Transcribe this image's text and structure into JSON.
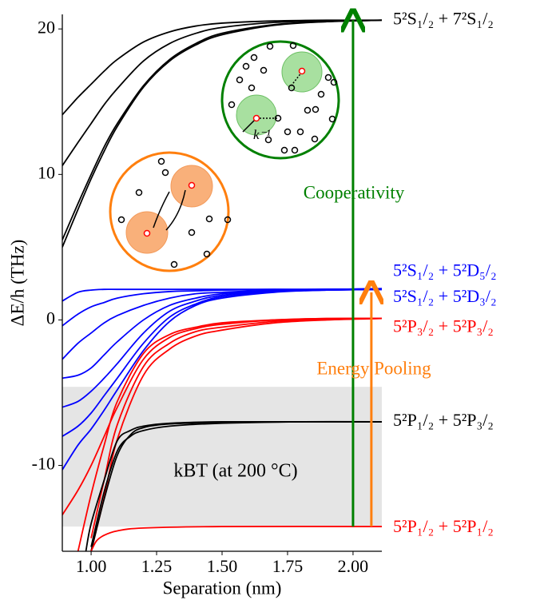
{
  "chart_data": {
    "type": "line",
    "x_label": "Separation (nm)",
    "y_label": "ΔE/h (THz)",
    "xlim": [
      0.89,
      2.11
    ],
    "ylim": [
      -15.9,
      21
    ],
    "xticks": [
      {
        "value": 1,
        "label": "1.00"
      },
      1.25,
      {
        "value": 1.5,
        "label": "1.50"
      },
      1.75,
      {
        "value": 2,
        "label": "2.00"
      }
    ],
    "yticks": [
      20,
      10,
      0,
      -10
    ],
    "band": {
      "range": [
        -14.2,
        -4.6
      ],
      "color": "#e5e5e5",
      "label": "kBT (at 200 °C)"
    },
    "inset_label": "k⁻¹",
    "arrows": [
      {
        "x": 2.0,
        "from": -14.2,
        "to": 20.6,
        "color": "green",
        "label": "Cooperativity"
      },
      {
        "x": 2.07,
        "from": -14.2,
        "to": 1.9,
        "color": "#ff7f0e",
        "label": "Energy Pooling"
      }
    ],
    "state_labels": [
      {
        "text": "5²S₁/₂ + 7²S₁/₂",
        "y": 20.6,
        "color": "black"
      },
      {
        "text": "5²S₁/₂ + 5²D₅/₂",
        "y": 2.15,
        "color": "blue"
      },
      {
        "text": "5²S₁/₂ + 5²D₃/₂",
        "y": 2.1,
        "color": "blue"
      },
      {
        "text": "5²P₃/₂ + 5²P₃/₂",
        "y": 0.1,
        "color": "red"
      },
      {
        "text": "5²P₁/₂ + 5²P₃/₂",
        "y": -7.0,
        "color": "black"
      },
      {
        "text": "5²P₁/₂ + 5²P₁/₂",
        "y": -14.2,
        "color": "red"
      }
    ],
    "series": [
      {
        "color": "black",
        "x": [
          0.89,
          0.95,
          1.0,
          1.05,
          1.1,
          1.2,
          1.3,
          1.4,
          1.5,
          1.7,
          1.9,
          2.11
        ],
        "values": [
          14.1,
          15.3,
          16.2,
          17.1,
          17.9,
          19.1,
          19.8,
          20.2,
          20.4,
          20.55,
          20.6,
          20.6
        ]
      },
      {
        "color": "black",
        "x": [
          0.89,
          0.95,
          1.0,
          1.05,
          1.1,
          1.2,
          1.3,
          1.4,
          1.5,
          1.7,
          1.9,
          2.11
        ],
        "values": [
          10.6,
          12.2,
          13.5,
          14.8,
          15.9,
          17.8,
          19.0,
          19.7,
          20.1,
          20.45,
          20.55,
          20.6
        ]
      },
      {
        "color": "black",
        "x": [
          0.89,
          0.95,
          1.0,
          1.05,
          1.1,
          1.2,
          1.3,
          1.4,
          1.5,
          1.7,
          1.9,
          2.11
        ],
        "values": [
          5.5,
          8.0,
          10.0,
          11.9,
          13.5,
          16.1,
          17.9,
          19.0,
          19.7,
          20.3,
          20.5,
          20.6
        ]
      },
      {
        "color": "black",
        "x": [
          0.89,
          0.95,
          1.0,
          1.05,
          1.1,
          1.2,
          1.3,
          1.4,
          1.5,
          1.7,
          1.9,
          2.11
        ],
        "values": [
          5.0,
          7.6,
          9.7,
          11.6,
          13.3,
          16.0,
          17.8,
          18.9,
          19.6,
          20.25,
          20.5,
          20.6
        ]
      },
      {
        "color": "blue",
        "x": [
          0.89,
          0.95,
          1.0,
          1.05,
          1.1,
          1.2,
          1.3,
          1.4,
          1.5,
          1.7,
          1.9,
          2.11
        ],
        "values": [
          1.3,
          1.9,
          2.05,
          2.1,
          2.1,
          2.1,
          2.1,
          2.1,
          2.1,
          2.1,
          2.1,
          2.15
        ]
      },
      {
        "color": "blue",
        "x": [
          0.89,
          0.95,
          1.0,
          1.05,
          1.1,
          1.2,
          1.3,
          1.4,
          1.5,
          1.7,
          1.9,
          2.11
        ],
        "values": [
          -0.4,
          0.4,
          0.9,
          1.2,
          1.5,
          1.8,
          1.95,
          2.0,
          2.05,
          2.1,
          2.1,
          2.15
        ]
      },
      {
        "color": "blue",
        "x": [
          0.89,
          0.95,
          1.0,
          1.05,
          1.1,
          1.2,
          1.3,
          1.4,
          1.5,
          1.7,
          1.9,
          2.11
        ],
        "values": [
          -2.7,
          -1.6,
          -0.9,
          -0.2,
          0.3,
          1.0,
          1.5,
          1.8,
          1.9,
          2.05,
          2.1,
          2.1
        ]
      },
      {
        "color": "blue",
        "x": [
          0.89,
          0.95,
          1.0,
          1.05,
          1.1,
          1.2,
          1.3,
          1.4,
          1.5,
          1.7,
          1.9,
          2.11
        ],
        "values": [
          -4.0,
          -3.8,
          -3.3,
          -2.4,
          -1.5,
          0.0,
          1.0,
          1.5,
          1.8,
          2.0,
          2.1,
          2.1
        ]
      },
      {
        "color": "blue",
        "x": [
          0.89,
          0.95,
          1.0,
          1.05,
          1.1,
          1.2,
          1.3,
          1.4,
          1.5,
          1.7,
          1.9,
          2.11
        ],
        "values": [
          -6.0,
          -5.6,
          -4.9,
          -4.0,
          -3.0,
          -0.9,
          0.6,
          1.3,
          1.7,
          2.0,
          2.05,
          2.1
        ]
      },
      {
        "color": "blue",
        "x": [
          0.89,
          0.95,
          1.0,
          1.05,
          1.1,
          1.2,
          1.3,
          1.4,
          1.5,
          1.7,
          1.9,
          2.11
        ],
        "values": [
          -8.0,
          -7.3,
          -6.4,
          -5.2,
          -4.0,
          -1.6,
          0.2,
          1.1,
          1.6,
          1.95,
          2.05,
          2.1
        ]
      },
      {
        "color": "blue",
        "x": [
          0.89,
          0.95,
          1.0,
          1.05,
          1.1,
          1.2,
          1.3,
          1.4,
          1.5,
          1.7,
          1.9,
          2.11
        ],
        "values": [
          -10.3,
          -8.6,
          -7.5,
          -6.2,
          -4.8,
          -2.1,
          -0.1,
          1.0,
          1.5,
          1.9,
          2.05,
          2.1
        ]
      },
      {
        "color": "red",
        "x": [
          0.89,
          0.95,
          1.0,
          1.05,
          1.1,
          1.2,
          1.3,
          1.4,
          1.5,
          1.7,
          1.9,
          2.11
        ],
        "values": [
          -13.4,
          -11.7,
          -10.0,
          -8.0,
          -6.0,
          -2.7,
          -1.2,
          -0.6,
          -0.3,
          0.0,
          0.1,
          0.1
        ]
      },
      {
        "color": "red",
        "x": [
          0.89,
          0.95,
          1.0,
          1.05,
          1.1,
          1.2,
          1.3,
          1.4,
          1.5,
          1.7,
          1.9,
          2.11
        ],
        "values": [
          null,
          -15.9,
          -12.0,
          -8.6,
          -5.6,
          -2.3,
          -1.0,
          -0.5,
          -0.2,
          0.0,
          0.1,
          0.1
        ]
      },
      {
        "color": "red",
        "x": [
          0.89,
          0.95,
          1.0,
          1.05,
          1.1,
          1.2,
          1.3,
          1.4,
          1.5,
          1.7,
          1.9,
          2.11
        ],
        "values": [
          null,
          null,
          -15.0,
          -11.0,
          -7.2,
          -3.2,
          -1.6,
          -0.8,
          -0.5,
          -0.1,
          0.05,
          0.1
        ]
      },
      {
        "color": "red",
        "x": [
          0.89,
          0.95,
          1.0,
          1.05,
          1.1,
          1.2,
          1.3,
          1.4,
          1.5,
          1.7,
          1.9,
          2.11
        ],
        "values": [
          null,
          null,
          -15.9,
          -12.2,
          -8.2,
          -3.8,
          -2.0,
          -1.1,
          -0.7,
          -0.2,
          0.0,
          0.1
        ]
      },
      {
        "color": "black",
        "x": [
          0.98,
          1.0,
          1.05,
          1.1,
          1.15,
          1.2,
          1.3,
          1.5,
          1.8,
          2.11
        ],
        "values": [
          -15.9,
          -14.0,
          -11.0,
          -8.3,
          -7.6,
          -7.3,
          -7.1,
          -7.0,
          -7.0,
          -7.0
        ]
      },
      {
        "color": "black",
        "x": [
          0.98,
          1.0,
          1.05,
          1.1,
          1.15,
          1.2,
          1.3,
          1.5,
          1.8,
          2.11
        ],
        "values": [
          null,
          -15.9,
          -12.3,
          -9.3,
          -7.9,
          -7.4,
          -7.15,
          -7.05,
          -7.0,
          -7.0
        ]
      },
      {
        "color": "black",
        "x": [
          0.98,
          1.0,
          1.05,
          1.1,
          1.15,
          1.2,
          1.3,
          1.5,
          1.8,
          2.11
        ],
        "values": [
          null,
          -15.6,
          -11.8,
          -9.0,
          -8.0,
          -7.6,
          -7.3,
          -7.1,
          -7.0,
          -7.0
        ]
      },
      {
        "color": "red",
        "x": [
          1.0,
          1.02,
          1.05,
          1.1,
          1.2,
          1.5,
          2.11
        ],
        "values": [
          -15.9,
          -15.2,
          -14.8,
          -14.5,
          -14.3,
          -14.2,
          -14.2
        ]
      }
    ]
  }
}
